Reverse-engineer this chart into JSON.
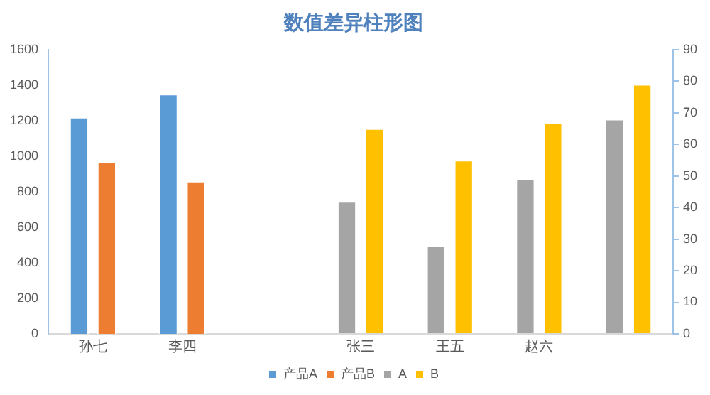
{
  "chart_data": {
    "type": "bar",
    "title": "数值差异柱形图",
    "categories": [
      "孙七",
      "李四",
      null,
      "张三",
      "王五",
      "赵六",
      null
    ],
    "series": [
      {
        "name": "产品A",
        "color": "#5b9bd5",
        "values": [
          1220,
          1350,
          null,
          null,
          null,
          null,
          null
        ]
      },
      {
        "name": "产品B",
        "color": "#ed7d31",
        "values": [
          970,
          860,
          null,
          null,
          null,
          null,
          null
        ]
      },
      {
        "name": "A",
        "color": "#a5a5a5",
        "axis": "y2",
        "values": [
          null,
          null,
          null,
          42,
          28,
          49,
          68
        ]
      },
      {
        "name": "B",
        "color": "#ffc000",
        "axis": "y2",
        "values": [
          null,
          null,
          null,
          65,
          55,
          67,
          79
        ]
      }
    ],
    "ylim": [
      0,
      1600
    ],
    "yticks": [
      0,
      200,
      400,
      600,
      800,
      1000,
      1200,
      1400,
      1600
    ],
    "y2lim": [
      0,
      90
    ],
    "y2ticks": [
      0,
      10,
      20,
      30,
      40,
      50,
      60,
      70,
      80,
      90
    ],
    "grid": false,
    "legend": "bottom"
  }
}
